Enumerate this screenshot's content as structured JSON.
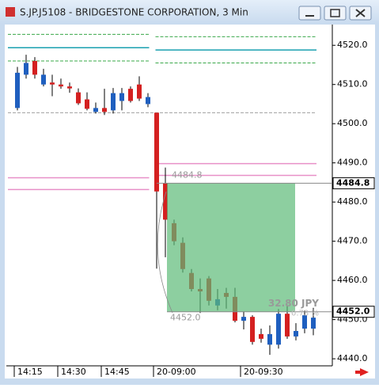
{
  "window": {
    "title": "S.JP.J5108 - BRIDGESTONE CORPORATION, 3 Min"
  },
  "chart_data": {
    "type": "candlestick",
    "categories": [
      "14:15",
      null,
      null,
      null,
      null,
      "14:30",
      null,
      null,
      null,
      null,
      "14:45",
      null,
      null,
      null,
      null,
      null,
      "20-09:00",
      null,
      null,
      null,
      null,
      null,
      null,
      null,
      null,
      null,
      "20-09:30",
      null,
      null,
      null,
      null,
      null,
      null,
      null,
      null
    ],
    "open": [
      4504,
      4512.5,
      4516,
      4510,
      4510.5,
      4510,
      4509.5,
      4508,
      4506.2,
      4503,
      4504,
      4503.4,
      4505.8,
      4508.9,
      4510,
      4505,
      4502.8,
      4484.8,
      4474.6,
      4469.6,
      4461.9,
      4457.8,
      4460.5,
      4453.6,
      4456.8,
      4455.8,
      4449.7,
      4450.7,
      4446.3,
      4443.6,
      4443.6,
      4451.5,
      4445.7,
      4447.7,
      4447.7
    ],
    "close": [
      4513,
      4515.5,
      4512.5,
      4512.5,
      4510,
      4509.5,
      4509,
      4505.2,
      4503.8,
      4504,
      4503,
      4507.8,
      4507.8,
      4505.8,
      4506.4,
      4506.8,
      4482.7,
      4475.5,
      4470,
      4462.9,
      4457.8,
      4457.2,
      4454.8,
      4455.2,
      4455.8,
      4449.7,
      4450.7,
      4444.3,
      4445.1,
      4446.3,
      4451.5,
      4445.7,
      4447.1,
      4451.1,
      4450.5
    ],
    "high": [
      4514.5,
      4517.6,
      4517,
      4514,
      4512.5,
      4511.5,
      4510.5,
      4509,
      4508,
      4505.4,
      4508.9,
      4509.1,
      4509.1,
      4509.5,
      4512.1,
      4507.8,
      4502.8,
      4488.8,
      4475.5,
      4471,
      4462.9,
      4460.5,
      4461.1,
      4457.8,
      4458.1,
      4458.1,
      4452.1,
      4451.1,
      4447.7,
      4448.5,
      4452.7,
      4453.8,
      4449.1,
      4452.3,
      4453.0
    ],
    "low": [
      4503.4,
      4511.5,
      4511.5,
      4509.5,
      4507,
      4508.9,
      4507.9,
      4504.8,
      4503.4,
      4502.6,
      4502.2,
      4502.6,
      4503.4,
      4505.4,
      4505.8,
      4504.2,
      4463,
      4465.9,
      4469,
      4462,
      4457.2,
      4451.7,
      4453.6,
      4452.4,
      4452.8,
      4449.3,
      4447.5,
      4443.6,
      4444.1,
      4441,
      4442.6,
      4445.1,
      4444.7,
      4446.5,
      4446.0
    ],
    "up_color": "#1f5fbf",
    "down_color": "#d42020",
    "ylim": [
      4438.2,
      4525.3
    ],
    "yticks": [
      {
        "value": 4440,
        "label": "4440.0"
      },
      {
        "value": 4450,
        "label": "4450.0"
      },
      {
        "value": 4460,
        "label": "4460.0"
      },
      {
        "value": 4470,
        "label": "4470.0"
      },
      {
        "value": 4480,
        "label": "4480.0"
      },
      {
        "value": 4490,
        "label": "4490.0"
      },
      {
        "value": 4500,
        "label": "4500.0"
      },
      {
        "value": 4510,
        "label": "4510.0"
      },
      {
        "value": 4520,
        "label": "4520.0"
      }
    ],
    "levels": [
      {
        "value": 4522.8,
        "color": "#3aa84a",
        "side": "left",
        "style": "dashed"
      },
      {
        "value": 4516.0,
        "color": "#3aa84a",
        "side": "left",
        "style": "dashed"
      },
      {
        "value": 4519.4,
        "color": "#1aa0b0",
        "side": "left",
        "style": "solid"
      },
      {
        "value": 4522.2,
        "color": "#3aa84a",
        "side": "right",
        "style": "dashed"
      },
      {
        "value": 4515.5,
        "color": "#3aa84a",
        "side": "right",
        "style": "dashed"
      },
      {
        "value": 4518.8,
        "color": "#1aa0b0",
        "side": "right",
        "style": "solid"
      },
      {
        "value": 4502.8,
        "color": "#a0a0a0",
        "side": "full",
        "style": "dashed"
      },
      {
        "value": 4489.8,
        "color": "#e890c8",
        "side": "right",
        "style": "solid"
      },
      {
        "value": 4486.8,
        "color": "#e890c8",
        "side": "right",
        "style": "solid"
      },
      {
        "value": 4486.2,
        "color": "#e890c8",
        "side": "left",
        "style": "solid"
      },
      {
        "value": 4483.2,
        "color": "#e890c8",
        "side": "left",
        "style": "solid"
      }
    ],
    "measure": {
      "start": {
        "value": 4484.8,
        "label": "4484.8"
      },
      "end": {
        "value": 4452.0,
        "label": "4452.0"
      },
      "change": "32.80 JPY",
      "percent": "0.73 %",
      "color": "#5dbb78"
    }
  }
}
